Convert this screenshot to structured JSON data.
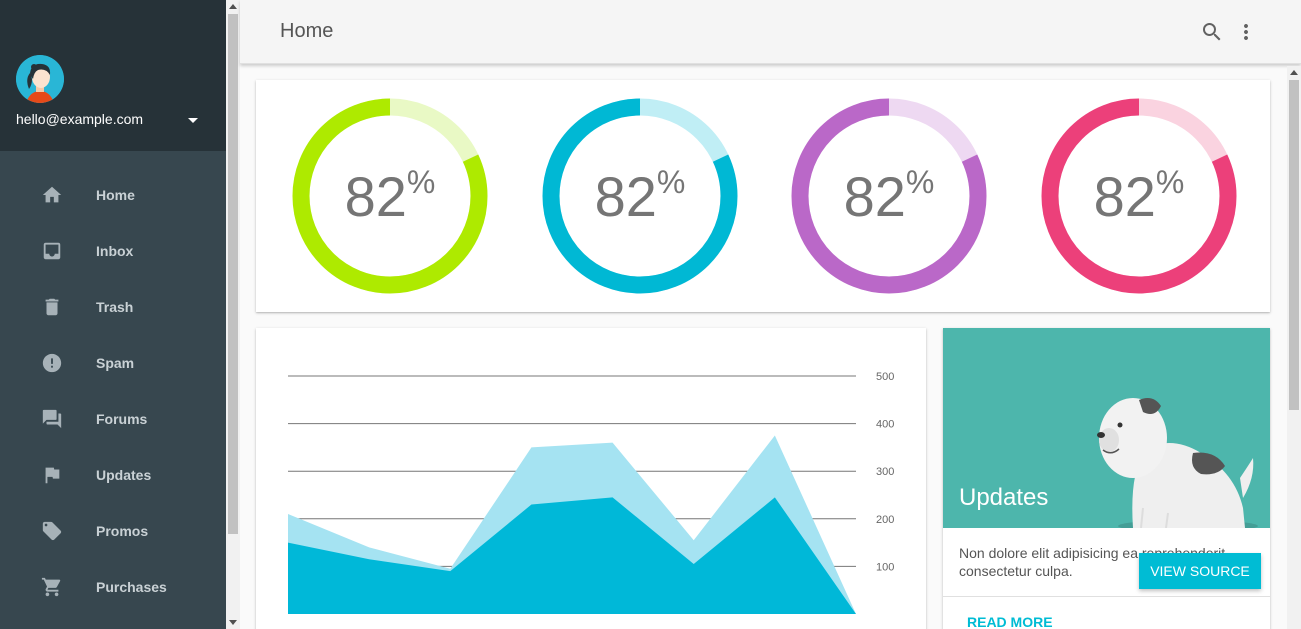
{
  "account": {
    "email": "hello@example.com"
  },
  "nav": [
    {
      "label": "Home",
      "icon": "home-icon"
    },
    {
      "label": "Inbox",
      "icon": "inbox-icon"
    },
    {
      "label": "Trash",
      "icon": "trash-icon"
    },
    {
      "label": "Spam",
      "icon": "spam-icon"
    },
    {
      "label": "Forums",
      "icon": "forum-icon"
    },
    {
      "label": "Updates",
      "icon": "flag-icon"
    },
    {
      "label": "Promos",
      "icon": "tag-icon"
    },
    {
      "label": "Purchases",
      "icon": "cart-icon"
    }
  ],
  "header": {
    "title": "Home"
  },
  "gauges": [
    {
      "value": "82",
      "unit": "%",
      "fraction": 0.82,
      "color": "#aeea00",
      "track": "#e9f9c5"
    },
    {
      "value": "82",
      "unit": "%",
      "fraction": 0.82,
      "color": "#00b8d4",
      "track": "#c0eef5"
    },
    {
      "value": "82",
      "unit": "%",
      "fraction": 0.82,
      "color": "#ba68c8",
      "track": "#eed9f2"
    },
    {
      "value": "82",
      "unit": "%",
      "fraction": 0.82,
      "color": "#ec407a",
      "track": "#fad3e0"
    }
  ],
  "chart_data": {
    "type": "area",
    "x": [
      0,
      1,
      2,
      3,
      4,
      5,
      6,
      7
    ],
    "series": [
      {
        "values": [
          210,
          140,
          95,
          350,
          360,
          155,
          375,
          0
        ],
        "color": "#a5e3f2"
      },
      {
        "values": [
          150,
          115,
          90,
          230,
          245,
          105,
          245,
          0
        ],
        "color": "#00b8d8"
      }
    ],
    "yticks": [
      "500",
      "400",
      "300",
      "200",
      "100"
    ],
    "ylim": [
      0,
      500
    ],
    "grid": true
  },
  "updates": {
    "title": "Updates",
    "text": "Non dolore elit adipisicing ea reprehenderit consectetur culpa.",
    "view_source": "VIEW SOURCE",
    "read_more": "READ MORE",
    "bg_color": "#4db6ac"
  }
}
